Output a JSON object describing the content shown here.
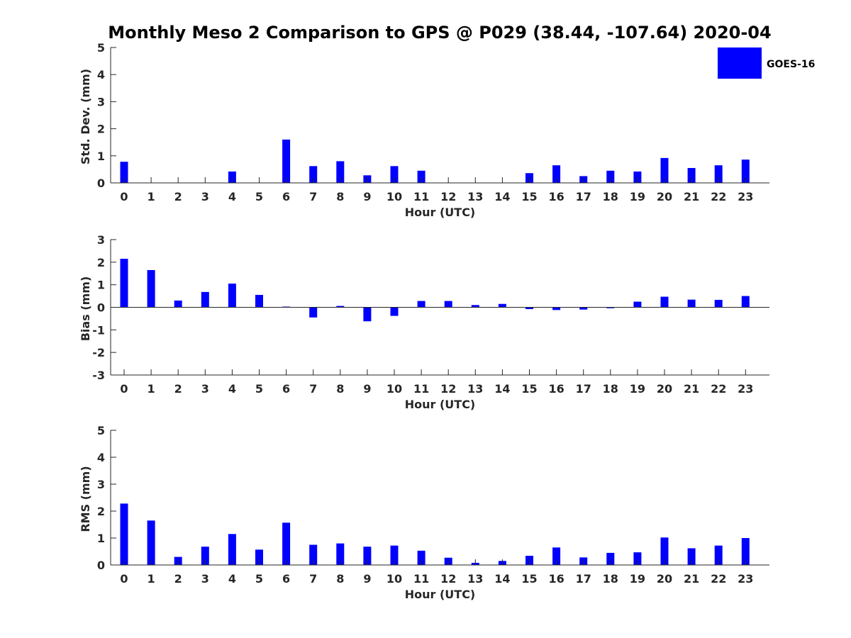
{
  "chart_data": [
    {
      "type": "bar",
      "figure_title": "Monthly Meso 2 Comparison to GPS @ P029 (38.44, -107.64) 2020-04",
      "xlabel": "Hour (UTC)",
      "ylabel": "Std. Dev. (mm)",
      "ylim": [
        0,
        5
      ],
      "yticks": [
        0,
        1,
        2,
        3,
        4,
        5
      ],
      "categories": [
        "0",
        "1",
        "2",
        "3",
        "4",
        "5",
        "6",
        "7",
        "8",
        "9",
        "10",
        "11",
        "12",
        "13",
        "14",
        "15",
        "16",
        "17",
        "18",
        "19",
        "20",
        "21",
        "22",
        "23"
      ],
      "series": [
        {
          "name": "GOES-16",
          "color": "#0000ff",
          "values": [
            0.78,
            null,
            null,
            null,
            0.42,
            null,
            1.6,
            0.62,
            0.8,
            0.28,
            0.62,
            0.45,
            null,
            null,
            null,
            0.36,
            0.65,
            0.25,
            0.45,
            0.42,
            0.92,
            0.55,
            0.65,
            0.86
          ]
        }
      ],
      "legend": {
        "entries": [
          "GOES-16"
        ],
        "location": "top-right"
      }
    },
    {
      "type": "bar",
      "xlabel": "Hour (UTC)",
      "ylabel": "Bias (mm)",
      "ylim": [
        -3,
        3
      ],
      "yticks": [
        -3,
        -2,
        -1,
        0,
        1,
        2,
        3
      ],
      "categories": [
        "0",
        "1",
        "2",
        "3",
        "4",
        "5",
        "6",
        "7",
        "8",
        "9",
        "10",
        "11",
        "12",
        "13",
        "14",
        "15",
        "16",
        "17",
        "18",
        "19",
        "20",
        "21",
        "22",
        "23"
      ],
      "series": [
        {
          "name": "GOES-16",
          "color": "#0000ff",
          "values": [
            2.15,
            1.65,
            0.3,
            0.68,
            1.05,
            0.55,
            0.03,
            -0.45,
            0.06,
            -0.62,
            -0.38,
            0.28,
            0.28,
            0.1,
            0.15,
            -0.08,
            -0.12,
            -0.1,
            -0.04,
            0.25,
            0.47,
            0.34,
            0.33,
            0.5
          ]
        }
      ]
    },
    {
      "type": "bar",
      "xlabel": "Hour (UTC)",
      "ylabel": "RMS (mm)",
      "ylim": [
        0,
        5
      ],
      "yticks": [
        0,
        1,
        2,
        3,
        4,
        5
      ],
      "categories": [
        "0",
        "1",
        "2",
        "3",
        "4",
        "5",
        "6",
        "7",
        "8",
        "9",
        "10",
        "11",
        "12",
        "13",
        "14",
        "15",
        "16",
        "17",
        "18",
        "19",
        "20",
        "21",
        "22",
        "23"
      ],
      "series": [
        {
          "name": "GOES-16",
          "color": "#0000ff",
          "values": [
            2.28,
            1.65,
            0.3,
            0.68,
            1.15,
            0.57,
            1.57,
            0.75,
            0.8,
            0.68,
            0.72,
            0.53,
            0.27,
            0.08,
            0.15,
            0.34,
            0.65,
            0.28,
            0.45,
            0.47,
            1.02,
            0.62,
            0.72,
            1.0
          ]
        }
      ]
    }
  ]
}
